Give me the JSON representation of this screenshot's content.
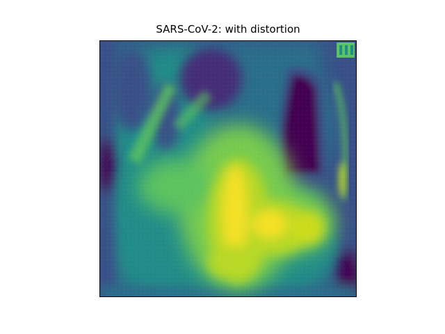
{
  "figure": {
    "title": "SARS-CoV-2: with distortion"
  },
  "image": {
    "kind": "chest-xray-heatmap",
    "colormap": "viridis",
    "colors": {
      "darkest": "#440154",
      "dark": "#3b528b",
      "mid": "#21918c",
      "light": "#5ec962",
      "brightest": "#fde725"
    },
    "axis_ticks_visible": false
  }
}
